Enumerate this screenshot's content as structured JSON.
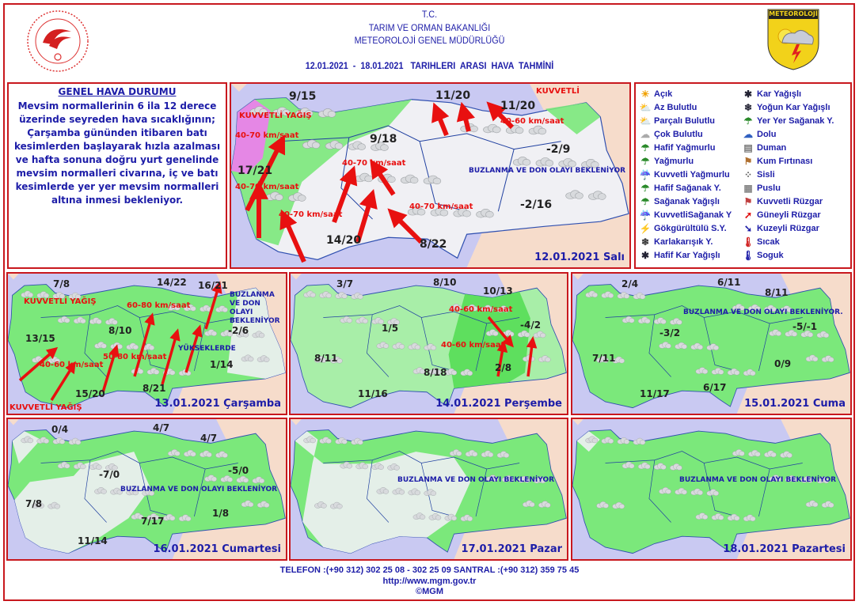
{
  "header": {
    "line1": "T.C.",
    "line2": "TARIM VE ORMAN BAKANLIĞI",
    "line3": "METEOROLOJİ GENEL MÜDÜRLÜĞÜ",
    "title": "12.01.2021  -  18.01.2021   TARIHLERI  ARASI  HAVA  TAHMİNİ",
    "right_logo_text": "METEOROLOJİ"
  },
  "general": {
    "title": "GENEL HAVA DURUMU",
    "body": "Mevsim normallerinin 6 ila 12 derece üzerinde seyreden hava sıcaklığının; Çarşamba gününden itibaren batı kesimlerden başlayarak hızla azalması ve hafta sonuna doğru yurt genelinde mevsim normalleri civarına, iç ve batı kesimlerde yer yer mevsim normalleri altına inmesi bekleniyor."
  },
  "legend": [
    {
      "icon": "sun-icon",
      "label": "Açık"
    },
    {
      "icon": "few-clouds-icon",
      "label": "Az Bulutlu"
    },
    {
      "icon": "partly-cloudy-icon",
      "label": "Parçalı Bulutlu"
    },
    {
      "icon": "cloudy-icon",
      "label": "Çok Bulutlu"
    },
    {
      "icon": "light-rain-icon",
      "label": "Hafif Yağmurlu"
    },
    {
      "icon": "rain-icon",
      "label": "Yağmurlu"
    },
    {
      "icon": "heavy-rain-icon",
      "label": "Kuvvetli Yağmurlu"
    },
    {
      "icon": "light-shower-icon",
      "label": "Hafif Sağanak Y."
    },
    {
      "icon": "shower-icon",
      "label": "Sağanak Yağışlı"
    },
    {
      "icon": "heavy-shower-icon",
      "label": "KuvvetliSağanak Y"
    },
    {
      "icon": "thunderstorm-icon",
      "label": "Gökgürültülü S.Y."
    },
    {
      "icon": "sleet-icon",
      "label": "Karlakarışık Y."
    },
    {
      "icon": "light-snow-icon",
      "label": "Hafif Kar Yağışlı"
    },
    {
      "icon": "snow-icon",
      "label": "Kar Yağışlı"
    },
    {
      "icon": "heavy-snow-icon",
      "label": "Yoğun Kar Yağışlı"
    },
    {
      "icon": "scattered-shower-icon",
      "label": "Yer Yer Sağanak Y."
    },
    {
      "icon": "hail-icon",
      "label": "Dolu"
    },
    {
      "icon": "smoke-icon",
      "label": "Duman"
    },
    {
      "icon": "sandstorm-icon",
      "label": "Kum Fırtınası"
    },
    {
      "icon": "fog-icon",
      "label": "Sisli"
    },
    {
      "icon": "haze-icon",
      "label": "Puslu"
    },
    {
      "icon": "strong-wind-icon",
      "label": "Kuvvetli Rüzgar"
    },
    {
      "icon": "south-wind-arrow-icon",
      "label": "Güneyli Rüzgar"
    },
    {
      "icon": "north-wind-arrow-icon",
      "label": "Kuzeyli Rüzgar"
    },
    {
      "icon": "hot-thermometer-icon",
      "label": "Sıcak"
    },
    {
      "icon": "cold-thermometer-icon",
      "label": "Soguk"
    }
  ],
  "maps": [
    {
      "date": "12.01.2021 Salı",
      "temps": [
        "9/15",
        "11/20",
        "11/20",
        "9/18",
        "17/21",
        "-2/9",
        "-2/16",
        "14/20",
        "8/22"
      ],
      "notes": [
        "KUVVETLİ",
        "40-60 km/saat",
        "BUZLANMA VE DON OLAYI BEKLENİYOR",
        "KUVVETLİ YAĞIŞ",
        "40-70 km/saat",
        "40-70 km/saat",
        "40-70 km/saat",
        "40-70 km/saat",
        "40-70 km/saat"
      ]
    },
    {
      "date": "13.01.2021 Çarşamba",
      "temps": [
        "7/8",
        "14/22",
        "16/21",
        "13/15",
        "8/10",
        "-2/6",
        "1/14",
        "15/20",
        "8/21"
      ],
      "notes": [
        "KUVVETLİ YAĞIŞ",
        "KUVVETLİ YAĞIŞ",
        "BUZLANMA VE DON OLAYI BEKLENİYOR",
        "YÜKSEKLERDE",
        "40-60 km/saat",
        "50-80 km/saat",
        "60-80 km/saat"
      ]
    },
    {
      "date": "14.01.2021 Perşembe",
      "temps": [
        "3/7",
        "8/10",
        "10/13",
        "1/5",
        "-4/2",
        "8/11",
        "8/18",
        "2/8",
        "11/16"
      ],
      "notes": [
        "40-60 km/saat",
        "40-60 km/saat"
      ]
    },
    {
      "date": "15.01.2021 Cuma",
      "temps": [
        "2/4",
        "6/11",
        "8/11",
        "-3/2",
        "-5/-1",
        "7/11",
        "0/9",
        "6/17",
        "11/17"
      ],
      "notes": [
        "BUZLANMA VE DON OLAYI BEKLENİYOR."
      ]
    },
    {
      "date": "16.01.2021 Cumartesi",
      "temps": [
        "0/4",
        "4/7",
        "4/7",
        "-7/0",
        "-5/0",
        "7/8",
        "1/8",
        "7/17",
        "11/14"
      ],
      "notes": [
        "BUZLANMA VE DON OLAYI BEKLENİYOR"
      ]
    },
    {
      "date": "17.01.2021 Pazar",
      "temps": [],
      "notes": [
        "BUZLANMA VE DON OLAYI BEKLENİYOR"
      ]
    },
    {
      "date": "18.01.2021 Pazartesi",
      "temps": [],
      "notes": [
        "BUZLANMA VE DON OLAYI BEKLENİYOR"
      ]
    }
  ],
  "footer": {
    "phone": "TELEFON :(+90 312) 302 25 08 - 302 25 09  SANTRAL :(+90 312) 359 75 45",
    "url": "http://www.mgm.gov.tr",
    "copyright": "©MGM"
  },
  "colors": {
    "border": "#c8181e",
    "text": "#1d1da8",
    "rain_zone": "#7be87b",
    "sea": "#c9c9f2",
    "wind_arrow": "#e81010"
  }
}
